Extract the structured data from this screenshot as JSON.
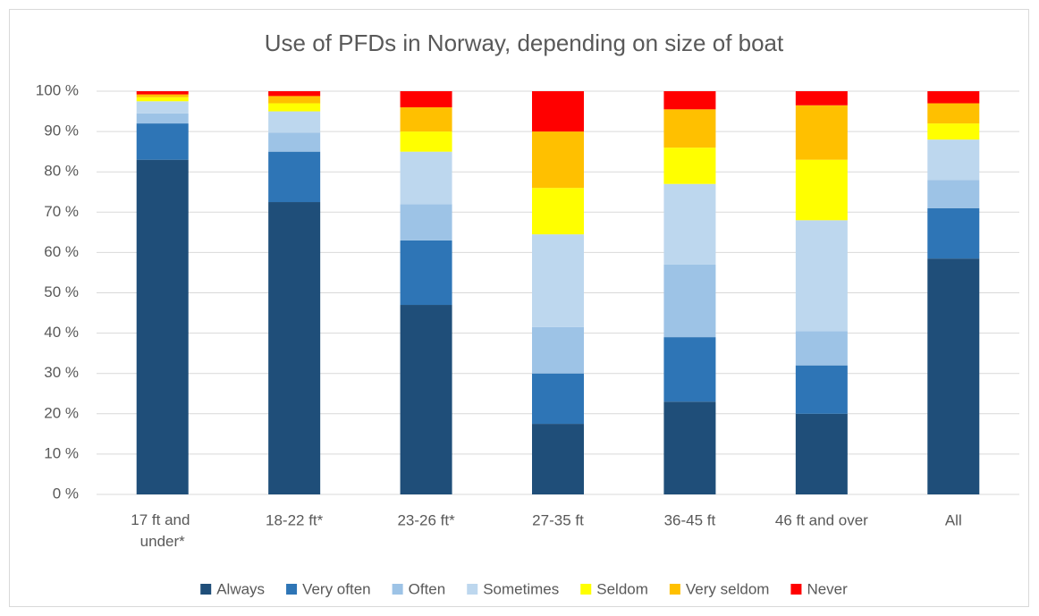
{
  "chart_data": {
    "type": "stacked_bar",
    "title": "Use of PFDs in Norway, depending on size of boat",
    "categories": [
      "17 ft and under*",
      "18-22 ft*",
      "23-26 ft*",
      "27-35 ft",
      "36-45 ft",
      "46 ft and over",
      "All"
    ],
    "series": [
      {
        "name": "Always",
        "color": "#1f4e79",
        "values": [
          83,
          72.5,
          47,
          17.5,
          23,
          20,
          58.5
        ]
      },
      {
        "name": "Very often",
        "color": "#2e75b6",
        "values": [
          9,
          12.5,
          16,
          12.5,
          16,
          12,
          12.5
        ]
      },
      {
        "name": "Often",
        "color": "#9dc3e6",
        "values": [
          2.5,
          4.7,
          9,
          11.5,
          18,
          8.5,
          7
        ]
      },
      {
        "name": "Sometimes",
        "color": "#bdd7ee",
        "values": [
          3,
          5.3,
          13,
          23,
          20,
          27.5,
          10
        ]
      },
      {
        "name": "Seldom",
        "color": "#ffff00",
        "values": [
          1,
          2,
          5,
          11.5,
          9,
          15,
          4
        ]
      },
      {
        "name": "Very seldom",
        "color": "#ffc000",
        "values": [
          0.7,
          1.8,
          6,
          14,
          9.5,
          13.5,
          5
        ]
      },
      {
        "name": "Never",
        "color": "#ff0000",
        "values": [
          0.8,
          1.2,
          4,
          10,
          4.5,
          3.5,
          3
        ]
      }
    ],
    "ylim": [
      0,
      100
    ],
    "yticks": [
      {
        "value": 0,
        "label": "0 %"
      },
      {
        "value": 10,
        "label": "10 %"
      },
      {
        "value": 20,
        "label": "20 %"
      },
      {
        "value": 30,
        "label": "30 %"
      },
      {
        "value": 40,
        "label": "40 %"
      },
      {
        "value": 50,
        "label": "50 %"
      },
      {
        "value": 60,
        "label": "60 %"
      },
      {
        "value": 70,
        "label": "70 %"
      },
      {
        "value": 80,
        "label": "80 %"
      },
      {
        "value": 90,
        "label": "90 %"
      },
      {
        "value": 100,
        "label": "100 %"
      }
    ],
    "grid": true,
    "legend": "bottom"
  }
}
